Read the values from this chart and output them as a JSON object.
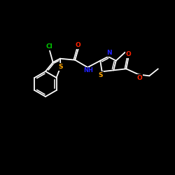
{
  "bg_color": "#000000",
  "bond_color": "#ffffff",
  "atom_colors": {
    "Cl": "#00cc00",
    "S": "#ffa500",
    "O": "#ff2200",
    "N": "#2222ff",
    "C": "#ffffff"
  },
  "figsize": [
    2.5,
    2.5
  ],
  "dpi": 100,
  "xlim": [
    0,
    10
  ],
  "ylim": [
    0,
    10
  ]
}
